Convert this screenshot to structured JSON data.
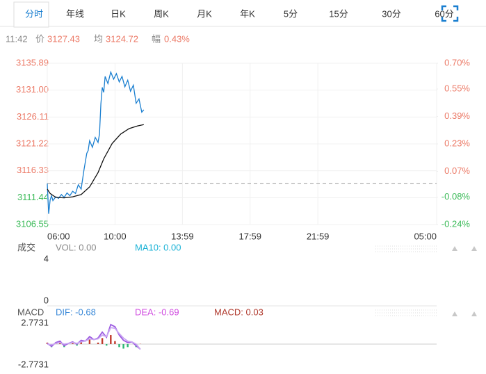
{
  "tabs": [
    "分时",
    "年线",
    "日K",
    "周K",
    "月K",
    "年K",
    "5分",
    "15分",
    "30分",
    "60分"
  ],
  "info": {
    "time": "11:42",
    "price_label": "价",
    "price": "3127.43",
    "avg_label": "均",
    "avg": "3124.72",
    "amp_label": "幅",
    "amp": "0.43%"
  },
  "chart_data": [
    {
      "type": "line",
      "xlim": [
        0,
        1380
      ],
      "xticks": [
        {
          "value": 0,
          "label": "06:00"
        },
        {
          "value": 240,
          "label": "10:00"
        },
        {
          "value": 479,
          "label": "13:59"
        },
        {
          "value": 719,
          "label": "17:59"
        },
        {
          "value": 959,
          "label": "21:59"
        },
        {
          "value": 1380,
          "label": "05:00"
        }
      ],
      "ylim": [
        3106.55,
        3135.89
      ],
      "yticks": [
        3135.89,
        {
          "value": 3131.0,
          "label": "3131.00"
        },
        3126.11,
        3121.22,
        3116.33,
        3111.44,
        3106.55
      ],
      "y2lim": [
        -0.24,
        0.7
      ],
      "y2ticks": [
        {
          "value": 0.7,
          "label": "0.70%"
        },
        {
          "value": 0.55,
          "label": "0.55%"
        },
        {
          "value": 0.39,
          "label": "0.39%"
        },
        {
          "value": 0.23,
          "label": "0.23%"
        },
        {
          "value": 0.07,
          "label": "0.07%"
        },
        {
          "value": -0.08,
          "label": "-0.08%"
        },
        {
          "value": -0.24,
          "label": "-0.24%"
        }
      ],
      "baseline": 3114.04,
      "up_color": "#ec7b68",
      "down_color": "#3dbb5a",
      "grid": true,
      "series": [
        {
          "color": "#1a7fd0",
          "x": [
            0,
            5,
            10,
            15,
            20,
            30,
            40,
            50,
            60,
            70,
            80,
            90,
            100,
            110,
            120,
            130,
            140,
            145,
            150,
            160,
            170,
            180,
            185,
            190,
            195,
            200,
            205,
            215,
            225,
            235,
            245,
            255,
            265,
            275,
            285,
            295,
            305,
            315,
            325,
            335,
            342
          ],
          "values": [
            3114.0,
            3108.5,
            3111.0,
            3111.8,
            3110.9,
            3111.6,
            3111.3,
            3112.0,
            3111.5,
            3112.3,
            3111.8,
            3112.6,
            3112.2,
            3113.8,
            3113.0,
            3116.5,
            3119.5,
            3120.0,
            3121.8,
            3120.6,
            3122.4,
            3121.5,
            3123.0,
            3128.5,
            3131.5,
            3130.6,
            3133.5,
            3132.2,
            3134.3,
            3133.0,
            3134.0,
            3132.5,
            3133.5,
            3131.6,
            3132.8,
            3130.8,
            3131.9,
            3128.6,
            3129.4,
            3127.0,
            3127.43
          ]
        },
        {
          "color": "#111111",
          "x": [
            0,
            10,
            30,
            60,
            90,
            120,
            150,
            180,
            200,
            230,
            260,
            290,
            320,
            342
          ],
          "values": [
            3113.0,
            3112.2,
            3111.5,
            3111.4,
            3111.6,
            3112.0,
            3113.4,
            3116.0,
            3118.5,
            3121.3,
            3123.0,
            3124.0,
            3124.5,
            3124.72
          ]
        }
      ]
    },
    {
      "type": "volume",
      "title": "成交",
      "labels": [
        {
          "text": "VOL: 0.00",
          "color": "#888888"
        },
        {
          "text": "MA10: 0.00",
          "color": "#1ab2d6"
        }
      ],
      "ylim": [
        0,
        4
      ],
      "yticks": [
        4,
        0
      ]
    },
    {
      "type": "macd",
      "title": "MACD",
      "labels": [
        {
          "text": "DIF: -0.68",
          "color": "#3c8ad8"
        },
        {
          "text": "DEA: -0.69",
          "color": "#d04ee0"
        },
        {
          "text": "MACD: 0.03",
          "color": "#b03a2e"
        }
      ],
      "ylim": [
        -2.7731,
        2.7731
      ],
      "yticks": [
        2.7731,
        -2.7731
      ],
      "xlim": [
        0,
        1380
      ],
      "x": [
        0,
        15,
        30,
        45,
        60,
        75,
        90,
        105,
        120,
        135,
        150,
        165,
        180,
        195,
        210,
        225,
        240,
        255,
        270,
        285,
        300,
        315,
        330
      ],
      "up_color": "#c0392b",
      "down_color": "#2bb673",
      "series": [
        {
          "color": "#9b59e0",
          "values": [
            0.1,
            -0.3,
            0.2,
            0.4,
            -0.2,
            0.1,
            0.3,
            0.0,
            0.5,
            0.4,
            1.0,
            0.6,
            0.8,
            1.6,
            0.9,
            2.6,
            2.3,
            1.2,
            0.5,
            0.2,
            0.3,
            -0.2,
            -0.68
          ]
        },
        {
          "color": "#c9a6f2",
          "values": [
            0.0,
            -0.1,
            0.1,
            0.2,
            0.0,
            0.1,
            0.2,
            0.1,
            0.3,
            0.4,
            0.7,
            0.6,
            0.7,
            1.2,
            1.0,
            2.2,
            2.1,
            1.4,
            0.8,
            0.4,
            0.3,
            0.0,
            -0.69
          ]
        }
      ],
      "histogram": [
        0.2,
        -0.4,
        0.2,
        0.4,
        -0.4,
        0.0,
        0.2,
        -0.2,
        0.4,
        0.0,
        0.6,
        0.0,
        0.2,
        0.8,
        -0.2,
        1.2,
        0.4,
        -0.4,
        -0.6,
        -0.4,
        0.0,
        -0.4,
        0.03
      ]
    }
  ]
}
